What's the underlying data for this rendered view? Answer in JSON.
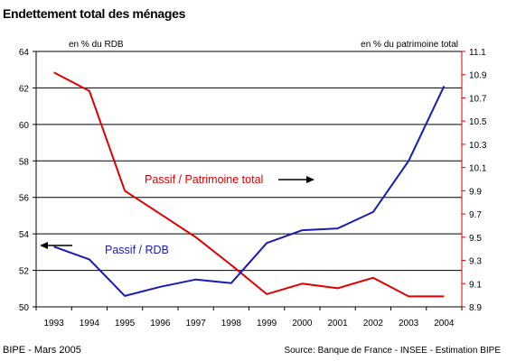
{
  "chart_data": {
    "type": "line",
    "title": "Endettement total des ménages",
    "left_axis_label": "en % du RDB",
    "right_axis_label": "en % du patrimoine total",
    "x": [
      "1993",
      "1994",
      "1995",
      "1996",
      "1997",
      "1998",
      "1999",
      "2000",
      "2001",
      "2002",
      "2003",
      "2004"
    ],
    "y_left": {
      "min": 50,
      "max": 64,
      "step": 2,
      "ticks": [
        "50",
        "52",
        "54",
        "56",
        "58",
        "60",
        "62",
        "64"
      ]
    },
    "y_right": {
      "min": 8.9,
      "max": 11.1,
      "step": 0.2,
      "ticks": [
        "8.9",
        "9.1",
        "9.3",
        "9.5",
        "9.7",
        "9.9",
        "10.1",
        "10.3",
        "10.5",
        "10.7",
        "10.9",
        "11.1"
      ]
    },
    "grid": "horizontal",
    "series": [
      {
        "name": "Passif / Patrimoine total",
        "axis": "right",
        "color": "#e00000",
        "values": [
          10.92,
          10.76,
          9.9,
          9.7,
          9.5,
          9.26,
          9.01,
          9.1,
          9.06,
          9.15,
          8.99,
          8.99
        ]
      },
      {
        "name": "Passif / RDB",
        "axis": "left",
        "color": "#1a1ab4",
        "values": [
          53.3,
          52.6,
          50.6,
          51.1,
          51.5,
          51.3,
          53.5,
          54.2,
          54.3,
          55.2,
          58.0,
          62.1
        ]
      }
    ],
    "annotations": [
      {
        "text": "Passif / Patrimoine total",
        "series": "Passif / Patrimoine total",
        "arrow": "right"
      },
      {
        "text": "Passif / RDB",
        "series": "Passif / RDB",
        "arrow": "left"
      }
    ]
  },
  "footer": {
    "left": "BIPE - Mars 2005",
    "right": "Source: Banque de France - INSEE - Estimation BIPE"
  }
}
